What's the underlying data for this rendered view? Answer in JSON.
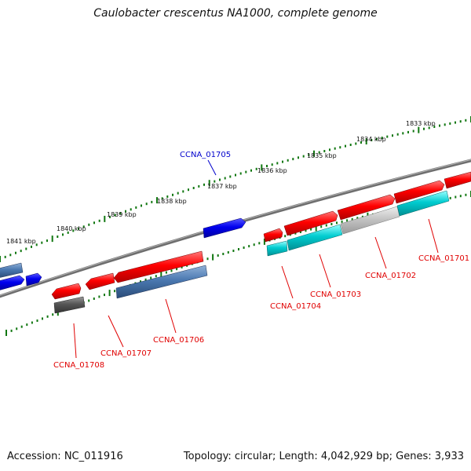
{
  "title": "Caulobacter crescentus NA1000, complete genome",
  "footer": {
    "accession": "Accession: NC_011916",
    "summary": "Topology: circular; Length: 4,042,929 bp; Genes: 3,933"
  },
  "scale_ticks": [
    "1841 kbp",
    "1840 kbp",
    "1839 kbp",
    "1838 kbp",
    "1837 kbp",
    "1836 kbp",
    "1835 kbp",
    "1834 kbp",
    "1833 kbp"
  ],
  "gene_labels": [
    "CCNA_01705",
    "CCNA_01701",
    "CCNA_01702",
    "CCNA_01703",
    "CCNA_01704",
    "CCNA_01706",
    "CCNA_01707",
    "CCNA_01708"
  ],
  "colors": {
    "forward_cds": "#ee0000",
    "blue_feature": "#0000ee",
    "steelblue_feature": "#3f70a8",
    "cyan_feature": "#00c8cc",
    "grey_feature": "#c0c0c0",
    "dark_feature": "#555555",
    "backbone": "#777777",
    "tick": "#117711",
    "label_red": "#e00000",
    "label_blue": "#0000cc"
  }
}
